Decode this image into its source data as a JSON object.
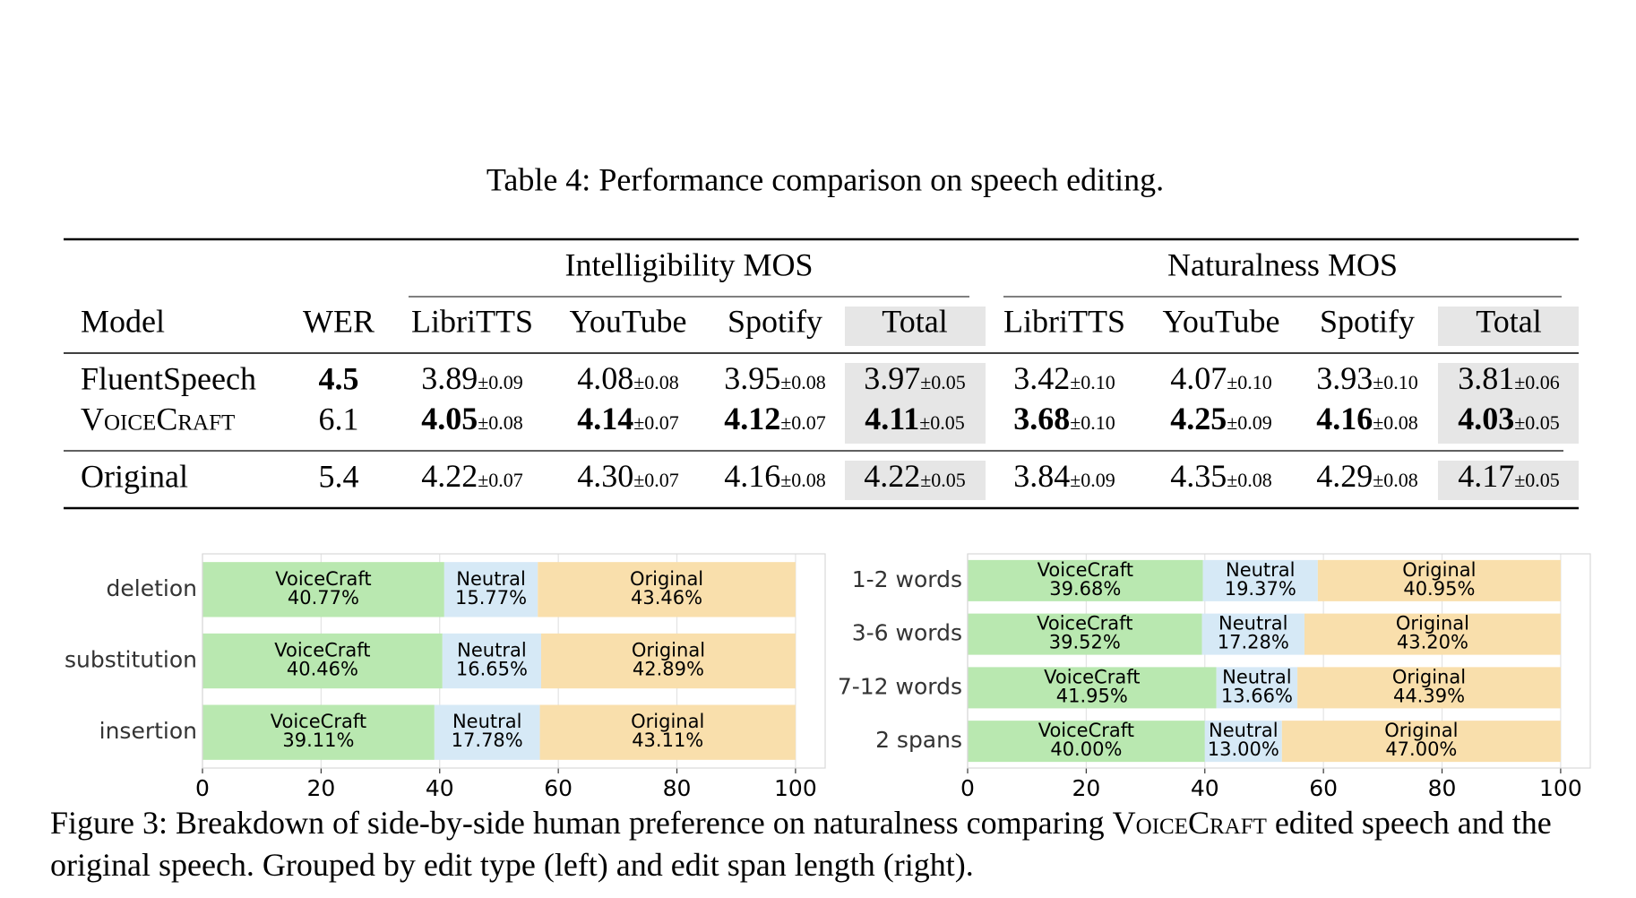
{
  "table": {
    "caption": "Table 4: Performance comparison on speech editing.",
    "groups": [
      "Intelligibility MOS",
      "Naturalness MOS"
    ],
    "columns": [
      "Model",
      "WER",
      "LibriTTS",
      "YouTube",
      "Spotify",
      "Total",
      "LibriTTS",
      "YouTube",
      "Spotify",
      "Total"
    ],
    "rows": [
      {
        "model": "FluentSpeech",
        "wer": {
          "value": "4.5",
          "bold": true
        },
        "cells": [
          {
            "value": "3.89",
            "error": "±0.09"
          },
          {
            "value": "4.08",
            "error": "±0.08"
          },
          {
            "value": "3.95",
            "error": "±0.08"
          },
          {
            "value": "3.97",
            "error": "±0.05"
          },
          {
            "value": "3.42",
            "error": "±0.10"
          },
          {
            "value": "4.07",
            "error": "±0.10"
          },
          {
            "value": "3.93",
            "error": "±0.10"
          },
          {
            "value": "3.81",
            "error": "±0.06"
          }
        ]
      },
      {
        "model": "VoiceCraft",
        "small_caps": true,
        "wer": {
          "value": "6.1"
        },
        "cells": [
          {
            "value": "4.05",
            "error": "±0.08",
            "bold": true
          },
          {
            "value": "4.14",
            "error": "±0.07",
            "bold": true
          },
          {
            "value": "4.12",
            "error": "±0.07",
            "bold": true
          },
          {
            "value": "4.11",
            "error": "±0.05",
            "bold": true
          },
          {
            "value": "3.68",
            "error": "±0.10",
            "bold": true
          },
          {
            "value": "4.25",
            "error": "±0.09",
            "bold": true
          },
          {
            "value": "4.16",
            "error": "±0.08",
            "bold": true
          },
          {
            "value": "4.03",
            "error": "±0.05",
            "bold": true
          }
        ]
      },
      {
        "model": "Original",
        "wer": {
          "value": "5.4"
        },
        "cells": [
          {
            "value": "4.22",
            "error": "±0.07"
          },
          {
            "value": "4.30",
            "error": "±0.07"
          },
          {
            "value": "4.16",
            "error": "±0.08"
          },
          {
            "value": "4.22",
            "error": "±0.05"
          },
          {
            "value": "3.84",
            "error": "±0.09"
          },
          {
            "value": "4.35",
            "error": "±0.08"
          },
          {
            "value": "4.29",
            "error": "±0.08"
          },
          {
            "value": "4.17",
            "error": "±0.05"
          }
        ]
      }
    ]
  },
  "chart_data": [
    {
      "type": "stacked_barh",
      "categories": [
        "deletion",
        "substitution",
        "insertion"
      ],
      "series": [
        {
          "name": "VoiceCraft",
          "color": "#b9e8b0",
          "values": [
            40.77,
            40.46,
            39.11
          ],
          "value_labels": [
            "40.77%",
            "40.46%",
            "39.11%"
          ]
        },
        {
          "name": "Neutral",
          "color": "#d6e9f6",
          "values": [
            15.77,
            16.65,
            17.78
          ],
          "value_labels": [
            "15.77%",
            "16.65%",
            "17.78%"
          ]
        },
        {
          "name": "Original",
          "color": "#f9dfac",
          "values": [
            43.46,
            42.89,
            43.11
          ],
          "value_labels": [
            "43.46%",
            "42.89%",
            "43.11%"
          ]
        }
      ],
      "xlim": [
        0,
        105
      ],
      "xticks": [
        0,
        20,
        40,
        60,
        80,
        100
      ],
      "grid": true
    },
    {
      "type": "stacked_barh",
      "categories": [
        "1-2 words",
        "3-6 words",
        "7-12 words",
        "2 spans"
      ],
      "series": [
        {
          "name": "VoiceCraft",
          "color": "#b9e8b0",
          "values": [
            39.68,
            39.52,
            41.95,
            40
          ],
          "value_labels": [
            "39.68%",
            "39.52%",
            "41.95%",
            "40.00%"
          ]
        },
        {
          "name": "Neutral",
          "color": "#d6e9f6",
          "values": [
            19.37,
            17.28,
            13.66,
            13
          ],
          "value_labels": [
            "19.37%",
            "17.28%",
            "13.66%",
            "13.00%"
          ]
        },
        {
          "name": "Original",
          "color": "#f9dfac",
          "values": [
            40.95,
            43.2,
            44.39,
            47
          ],
          "value_labels": [
            "40.95%",
            "43.20%",
            "44.39%",
            "47.00%"
          ]
        }
      ],
      "xlim": [
        0,
        105
      ],
      "xticks": [
        0,
        20,
        40,
        60,
        80,
        100
      ],
      "grid": true
    }
  ],
  "figure_caption": {
    "before": "Figure 3: Breakdown of side-by-side human preference on naturalness comparing ",
    "name": "VoiceCraft",
    "after": " edited speech and the original speech. Grouped by edit type (left) and edit span length (right)."
  }
}
